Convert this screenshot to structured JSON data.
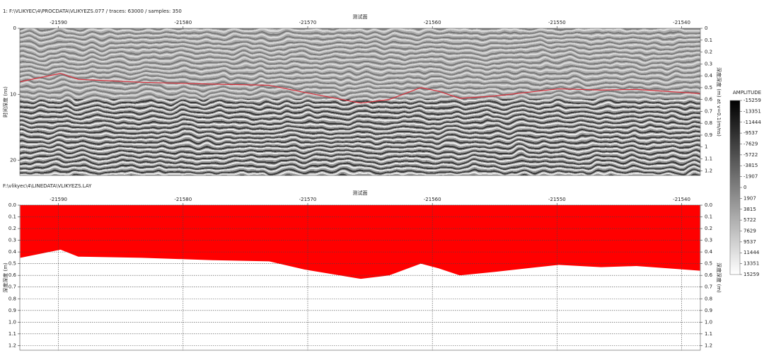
{
  "chart_data": [
    {
      "type": "line",
      "header": "1: F:\\VLIKYEC\\4\\PROCDATA\\VLIKYEZS.077 / traces: 63000 / samples: 350",
      "title": "测试面",
      "ylabel": "时间深度 (ns)",
      "y2label": "深度深度 (m)  at v=0.1(m/ns)",
      "x": [
        -21593.06,
        -21589.83,
        -21588.41,
        -21583.31,
        -21577.64,
        -21573.11,
        -21570.27,
        -21565.74,
        -21563.47,
        -21560.92,
        -21559.5,
        -21557.8,
        -21554.97,
        -21549.86,
        -21546.46,
        -21543.63,
        -21538.53
      ],
      "series": [
        {
          "color": "#d8303c",
          "axis": "y2",
          "values": [
            0.45,
            0.38,
            0.43,
            0.455,
            0.47,
            0.48,
            0.54,
            0.63,
            0.6,
            0.5,
            0.53,
            0.59,
            0.57,
            0.51,
            0.52,
            0.515,
            0.55
          ]
        }
      ],
      "xlim": [
        -21593.1,
        -21538.5
      ],
      "xticks": [
        -21590,
        -21580,
        -21570,
        -21560,
        -21550,
        -21540
      ],
      "ylim": [
        0,
        22.3
      ],
      "yticks": [
        0,
        10,
        20
      ],
      "y2lim": [
        0,
        1.24
      ],
      "y2ticks": [
        0,
        0.1,
        0.2,
        0.3,
        0.4,
        0.5,
        0.6,
        0.7,
        0.8,
        0.9,
        1.0,
        1.1,
        1.2
      ],
      "y_inverted": true,
      "colorbar": {
        "title": "AMPLITUDE",
        "ticks": [
          -15259,
          -13351,
          -11444,
          -9537,
          -7629,
          -5722,
          -3815,
          -1907,
          0,
          1907,
          3815,
          5722,
          7629,
          9537,
          11444,
          13351,
          15259
        ]
      }
    },
    {
      "type": "area",
      "header": "F:\\vlikyec\\4\\LINEDATA\\VLIKYEZS.LAY",
      "title": "测试面",
      "ylabel": "深度深度 (m)",
      "y2label": "深度深度 (m)",
      "x": [
        -21593.06,
        -21589.83,
        -21588.41,
        -21583.31,
        -21577.64,
        -21573.11,
        -21570.27,
        -21565.74,
        -21563.47,
        -21560.92,
        -21559.5,
        -21557.8,
        -21554.97,
        -21549.86,
        -21546.46,
        -21543.63,
        -21538.53
      ],
      "series": [
        {
          "color": "#ff0000",
          "values": [
            0.45,
            0.38,
            0.44,
            0.45,
            0.47,
            0.48,
            0.55,
            0.63,
            0.6,
            0.5,
            0.54,
            0.6,
            0.57,
            0.51,
            0.53,
            0.52,
            0.56
          ]
        }
      ],
      "xlim": [
        -21593.1,
        -21538.5
      ],
      "xticks": [
        -21590,
        -21580,
        -21570,
        -21560,
        -21550,
        -21540
      ],
      "ylim": [
        0,
        1.24
      ],
      "yticks": [
        {
          "value": 0,
          "label": "0.0"
        },
        0.1,
        0.2,
        0.3,
        0.4,
        0.5,
        0.6,
        0.7,
        0.8,
        0.9,
        {
          "value": 1,
          "label": "1.0"
        },
        1.1,
        1.2
      ],
      "y_inverted": true,
      "grid": true
    }
  ]
}
